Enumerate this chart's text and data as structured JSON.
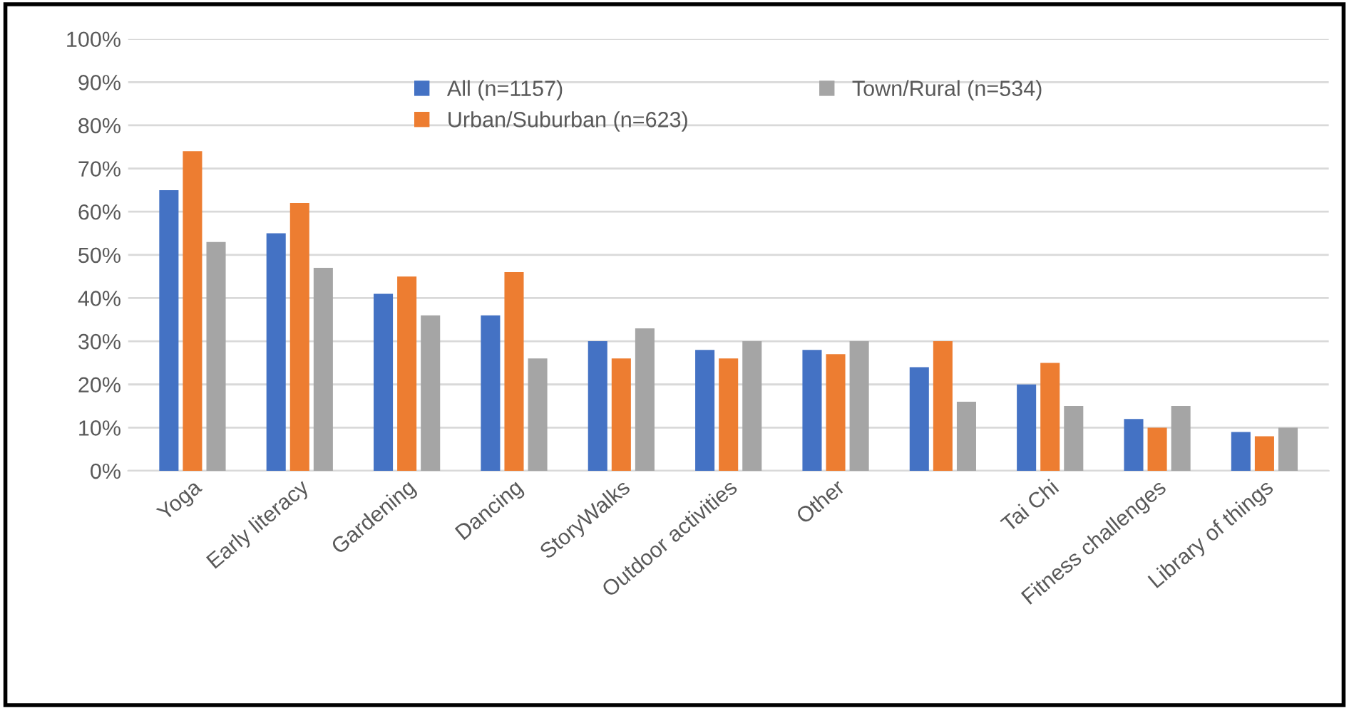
{
  "chart_data": {
    "type": "bar",
    "categories": [
      "Yoga",
      "Early literacy",
      "Gardening",
      "Dancing",
      "StoryWalks",
      "Outdoor activities",
      "Other",
      null,
      "Tai Chi",
      "Fitness challenges",
      "Library of things"
    ],
    "series": [
      {
        "name": "All (n=1157)",
        "color": "#4472c4",
        "values": [
          65,
          55,
          41,
          36,
          30,
          28,
          28,
          24,
          20,
          12,
          9
        ]
      },
      {
        "name": "Urban/Suburban (n=623)",
        "color": "#ed7d31",
        "values": [
          74,
          62,
          45,
          46,
          26,
          26,
          27,
          30,
          25,
          10,
          8
        ]
      },
      {
        "name": "Town/Rural (n=534)",
        "color": "#a5a5a5",
        "values": [
          53,
          47,
          36,
          26,
          33,
          30,
          30,
          16,
          15,
          15,
          10
        ]
      }
    ],
    "ylim": [
      0,
      100
    ],
    "yticks": [
      {
        "value": 0,
        "label": "0%"
      },
      {
        "value": 10,
        "label": "10%"
      },
      {
        "value": 20,
        "label": "20%"
      },
      {
        "value": 30,
        "label": "30%"
      },
      {
        "value": 40,
        "label": "40%"
      },
      {
        "value": 50,
        "label": "50%"
      },
      {
        "value": 60,
        "label": "60%"
      },
      {
        "value": 70,
        "label": "70%"
      },
      {
        "value": 80,
        "label": "80%"
      },
      {
        "value": 90,
        "label": "90%"
      },
      {
        "value": 100,
        "label": "100%"
      }
    ],
    "grid": "y",
    "legend": "top"
  }
}
